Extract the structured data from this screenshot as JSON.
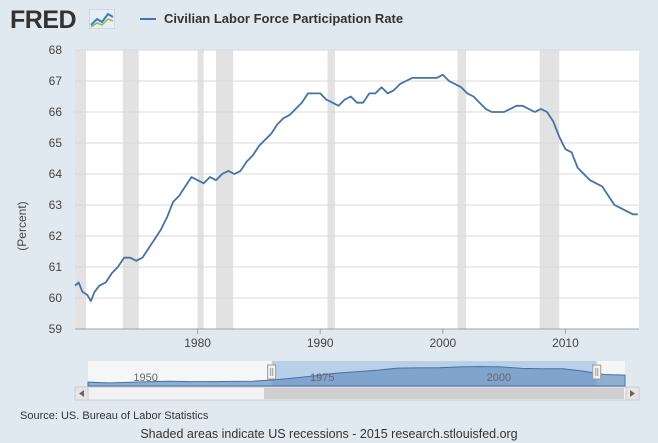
{
  "logo": {
    "text": "FRED",
    "mark": "chart-line-icon"
  },
  "chart_data": {
    "type": "line",
    "title": "",
    "ylabel": "(Percent)",
    "xlabel": "",
    "xlim": [
      1970,
      2016
    ],
    "ylim": [
      59,
      68
    ],
    "yticks": [
      59,
      60,
      61,
      62,
      63,
      64,
      65,
      66,
      67,
      68
    ],
    "xticks": [
      1980,
      1990,
      2000,
      2010
    ],
    "grid": true,
    "legend": "top-left",
    "series": [
      {
        "name": "Civilian Labor Force Participation Rate",
        "color": "#4572a7",
        "x": [
          1970.0,
          1970.3,
          1970.6,
          1971.0,
          1971.3,
          1971.6,
          1972.0,
          1972.5,
          1973.0,
          1973.5,
          1974.0,
          1974.5,
          1975.0,
          1975.5,
          1976.0,
          1976.5,
          1977.0,
          1977.5,
          1978.0,
          1978.5,
          1979.0,
          1979.5,
          1980.0,
          1980.5,
          1981.0,
          1981.5,
          1982.0,
          1982.5,
          1983.0,
          1983.5,
          1984.0,
          1984.5,
          1985.0,
          1985.5,
          1986.0,
          1986.5,
          1987.0,
          1987.5,
          1988.0,
          1988.5,
          1989.0,
          1989.5,
          1990.0,
          1990.5,
          1991.0,
          1991.5,
          1992.0,
          1992.5,
          1993.0,
          1993.5,
          1994.0,
          1994.5,
          1995.0,
          1995.5,
          1996.0,
          1996.5,
          1997.0,
          1997.5,
          1998.0,
          1998.5,
          1999.0,
          1999.5,
          2000.0,
          2000.5,
          2001.0,
          2001.5,
          2002.0,
          2002.5,
          2003.0,
          2003.5,
          2004.0,
          2004.5,
          2005.0,
          2005.5,
          2006.0,
          2006.5,
          2007.0,
          2007.5,
          2008.0,
          2008.5,
          2009.0,
          2009.5,
          2010.0,
          2010.5,
          2011.0,
          2011.5,
          2012.0,
          2012.5,
          2013.0,
          2013.5,
          2014.0,
          2014.5,
          2015.0,
          2015.5,
          2015.9
        ],
        "values": [
          60.4,
          60.5,
          60.2,
          60.1,
          59.9,
          60.2,
          60.4,
          60.5,
          60.8,
          61.0,
          61.3,
          61.3,
          61.2,
          61.3,
          61.6,
          61.9,
          62.2,
          62.6,
          63.1,
          63.3,
          63.6,
          63.9,
          63.8,
          63.7,
          63.9,
          63.8,
          64.0,
          64.1,
          64.0,
          64.1,
          64.4,
          64.6,
          64.9,
          65.1,
          65.3,
          65.6,
          65.8,
          65.9,
          66.1,
          66.3,
          66.6,
          66.6,
          66.6,
          66.4,
          66.3,
          66.2,
          66.4,
          66.5,
          66.3,
          66.3,
          66.6,
          66.6,
          66.8,
          66.6,
          66.7,
          66.9,
          67.0,
          67.1,
          67.1,
          67.1,
          67.1,
          67.1,
          67.2,
          67.0,
          66.9,
          66.8,
          66.6,
          66.5,
          66.3,
          66.1,
          66.0,
          66.0,
          66.0,
          66.1,
          66.2,
          66.2,
          66.1,
          66.0,
          66.1,
          66.0,
          65.7,
          65.2,
          64.8,
          64.7,
          64.2,
          64.0,
          63.8,
          63.7,
          63.6,
          63.3,
          63.0,
          62.9,
          62.8,
          62.7,
          62.7
        ]
      }
    ],
    "recessions": [
      [
        1969.9,
        1970.9
      ],
      [
        1973.9,
        1975.2
      ],
      [
        1980.0,
        1980.5
      ],
      [
        1981.5,
        1982.9
      ],
      [
        1990.6,
        1991.2
      ],
      [
        2001.2,
        2001.9
      ],
      [
        2007.9,
        2009.5
      ]
    ],
    "navigator": {
      "labels": [
        "1950",
        "1975",
        "2000"
      ],
      "label_years": [
        1950,
        1975,
        2000
      ],
      "range": [
        1944,
        2020
      ],
      "selected": [
        1970,
        2016
      ],
      "series": [
        59.0,
        58.6,
        58.9,
        59.3,
        59.5,
        59.3,
        59.3,
        59.4,
        59.5,
        60.2,
        61.2,
        62.4,
        63.7,
        64.5,
        65.3,
        66.4,
        66.5,
        66.6,
        67.0,
        67.2,
        67.0,
        66.2,
        66.0,
        66.0,
        64.7,
        63.0,
        62.7
      ]
    }
  },
  "footer": {
    "source": "Source: US. Bureau of Labor Statistics",
    "note": "Shaded areas indicate US recessions - 2015 research.stlouisfed.org"
  }
}
